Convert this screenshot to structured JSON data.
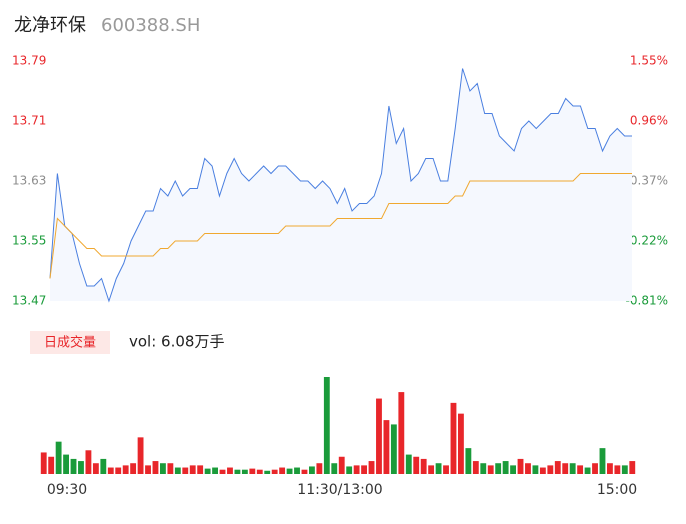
{
  "header": {
    "name": "龙净环保",
    "code": "600388.SH"
  },
  "chart_data": [
    {
      "type": "line",
      "ylim": [
        13.47,
        13.79
      ],
      "yticks": [
        13.79,
        13.71,
        13.63,
        13.55,
        13.47
      ],
      "y2lim": [
        -0.81,
        1.55
      ],
      "y2ticks": [
        {
          "value": 1.55,
          "label": "1.55%"
        },
        {
          "value": 0.96,
          "label": "0.96%"
        },
        {
          "value": 0.37,
          "label": "0.37%"
        },
        {
          "value": -0.22,
          "label": "-0.22%"
        },
        {
          "value": -0.81,
          "label": "-0.81%"
        }
      ],
      "tick_colors": [
        "#e8262a",
        "#e8262a",
        "#8c8c8c",
        "#1a9b3a",
        "#1a9b3a"
      ],
      "series": [
        {
          "color": "#4a7fe0",
          "values": [
            13.5,
            13.64,
            13.57,
            13.56,
            13.52,
            13.49,
            13.49,
            13.5,
            13.47,
            13.5,
            13.52,
            13.55,
            13.57,
            13.59,
            13.59,
            13.62,
            13.61,
            13.63,
            13.61,
            13.62,
            13.62,
            13.66,
            13.65,
            13.61,
            13.64,
            13.66,
            13.64,
            13.63,
            13.64,
            13.65,
            13.64,
            13.65,
            13.65,
            13.64,
            13.63,
            13.63,
            13.62,
            13.63,
            13.62,
            13.6,
            13.62,
            13.59,
            13.6,
            13.6,
            13.61,
            13.64,
            13.73,
            13.68,
            13.7,
            13.63,
            13.64,
            13.66,
            13.66,
            13.63,
            13.63,
            13.7,
            13.78,
            13.75,
            13.76,
            13.72,
            13.72,
            13.69,
            13.68,
            13.67,
            13.7,
            13.71,
            13.7,
            13.71,
            13.72,
            13.72,
            13.74,
            13.73,
            13.73,
            13.7,
            13.7,
            13.67,
            13.69,
            13.7,
            13.69,
            13.69
          ]
        },
        {
          "color": "#f0a830",
          "values": [
            13.5,
            13.58,
            13.57,
            13.56,
            13.55,
            13.54,
            13.54,
            13.53,
            13.53,
            13.53,
            13.53,
            13.53,
            13.53,
            13.53,
            13.53,
            13.54,
            13.54,
            13.55,
            13.55,
            13.55,
            13.55,
            13.56,
            13.56,
            13.56,
            13.56,
            13.56,
            13.56,
            13.56,
            13.56,
            13.56,
            13.56,
            13.56,
            13.57,
            13.57,
            13.57,
            13.57,
            13.57,
            13.57,
            13.57,
            13.58,
            13.58,
            13.58,
            13.58,
            13.58,
            13.58,
            13.58,
            13.6,
            13.6,
            13.6,
            13.6,
            13.6,
            13.6,
            13.6,
            13.6,
            13.6,
            13.61,
            13.61,
            13.63,
            13.63,
            13.63,
            13.63,
            13.63,
            13.63,
            13.63,
            13.63,
            13.63,
            13.63,
            13.63,
            13.63,
            13.63,
            13.63,
            13.63,
            13.64,
            13.64,
            13.64,
            13.64,
            13.64,
            13.64,
            13.64,
            13.64
          ]
        }
      ]
    },
    {
      "type": "bar",
      "label": "日成交量",
      "summary": "vol: 6.08万手",
      "x_labels": [
        "09:30",
        "11:30/13:00",
        "15:00"
      ],
      "up_color": "#e8262a",
      "down_color": "#1a9b3a",
      "values": [
        1000,
        800,
        1500,
        900,
        700,
        600,
        1100,
        500,
        700,
        300,
        300,
        400,
        500,
        1700,
        400,
        600,
        500,
        500,
        300,
        300,
        400,
        400,
        250,
        300,
        200,
        300,
        200,
        200,
        250,
        200,
        150,
        200,
        300,
        250,
        300,
        200,
        350,
        500,
        4500,
        500,
        800,
        350,
        400,
        400,
        600,
        3500,
        2500,
        2300,
        3800,
        900,
        800,
        700,
        400,
        500,
        400,
        3300,
        2800,
        1200,
        600,
        500,
        400,
        500,
        600,
        400,
        700,
        500,
        400,
        300,
        400,
        600,
        500,
        500,
        400,
        300,
        500,
        1200,
        500,
        400,
        400,
        600
      ]
    }
  ]
}
